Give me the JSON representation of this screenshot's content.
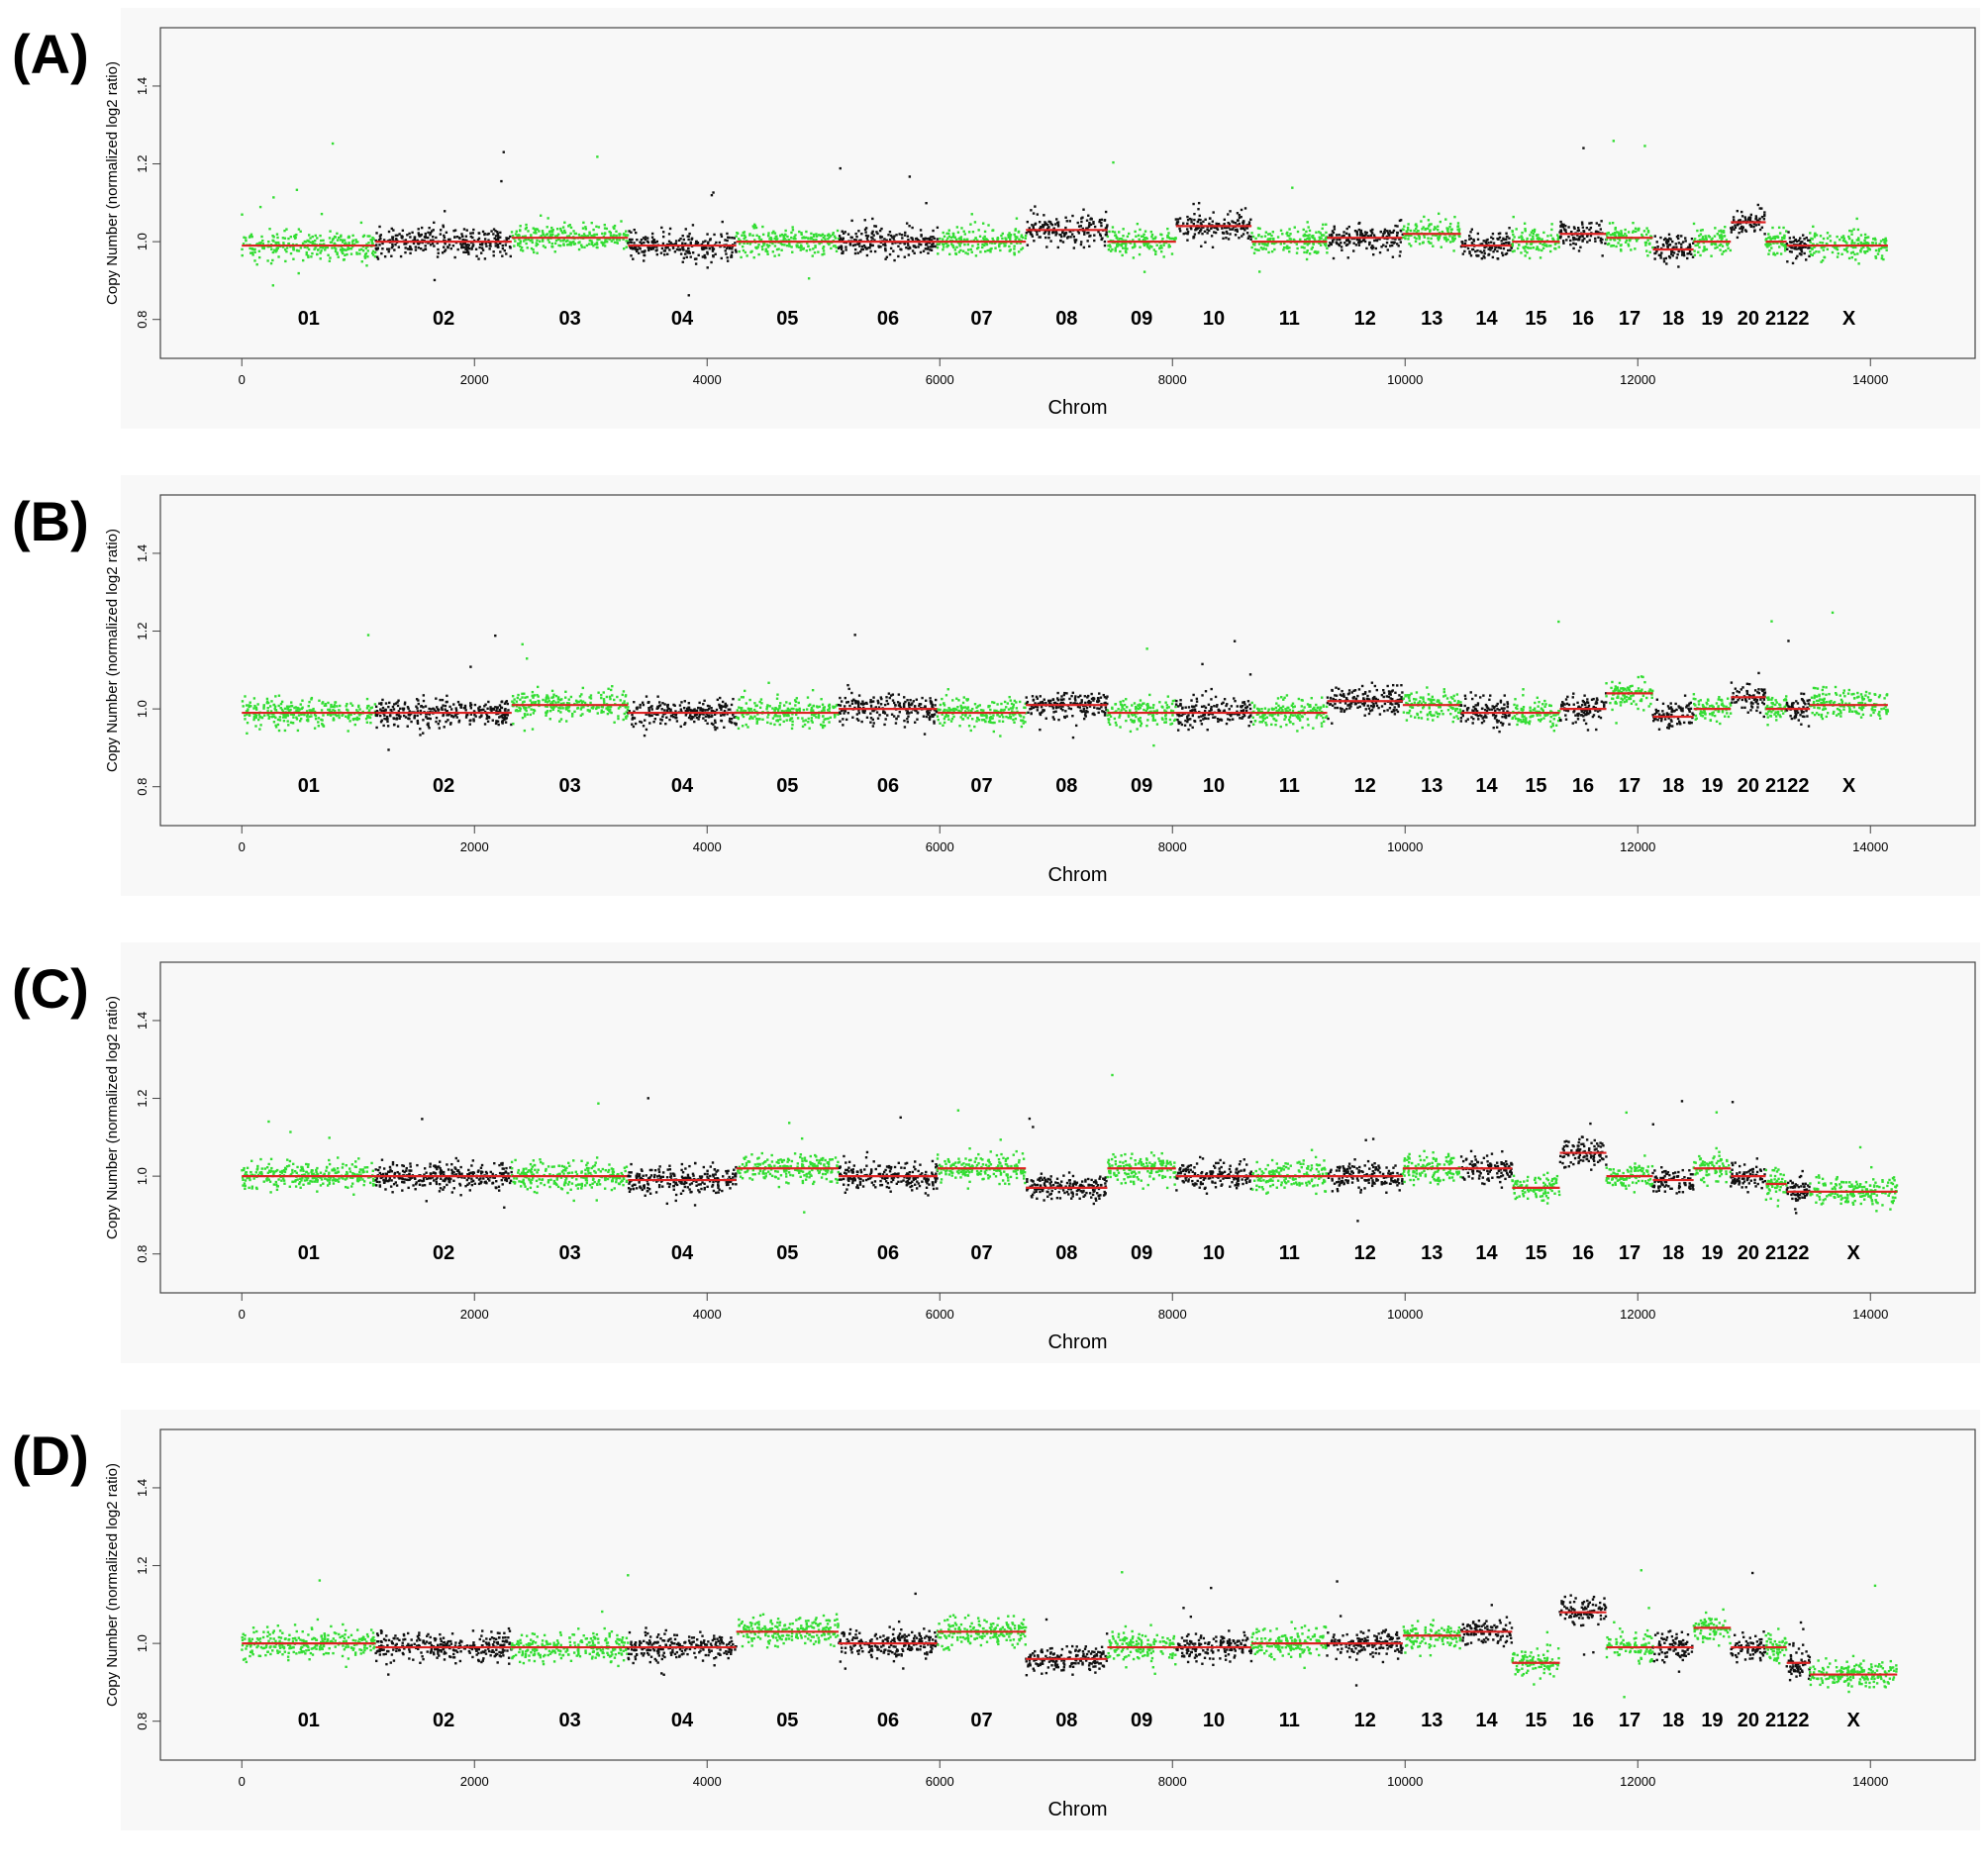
{
  "chart_data": [
    {
      "type": "scatter",
      "panel_label": "(A)",
      "xlabel": "Chrom",
      "ylabel": "Copy Number (normalized log2 ratio)",
      "xlim": [
        -700,
        14900
      ],
      "ylim": [
        0.7,
        1.55
      ],
      "xticks": [
        "0",
        "2000",
        "4000",
        "6000",
        "8000",
        "10000",
        "12000",
        "14000"
      ],
      "yticks": [
        "0.8",
        "1.0",
        "1.2",
        "1.4"
      ],
      "chromosomes": [
        {
          "label": "01",
          "start": 0,
          "end": 1150,
          "color": "green",
          "level": 0.99
        },
        {
          "label": "02",
          "start": 1150,
          "end": 2320,
          "color": "black",
          "level": 1.0
        },
        {
          "label": "03",
          "start": 2320,
          "end": 3320,
          "color": "green",
          "level": 1.01
        },
        {
          "label": "04",
          "start": 3320,
          "end": 4250,
          "color": "black",
          "level": 0.99
        },
        {
          "label": "05",
          "start": 4250,
          "end": 5130,
          "color": "green",
          "level": 1.0
        },
        {
          "label": "06",
          "start": 5130,
          "end": 5980,
          "color": "black",
          "level": 1.0
        },
        {
          "label": "07",
          "start": 5980,
          "end": 6740,
          "color": "green",
          "level": 1.0
        },
        {
          "label": "08",
          "start": 6740,
          "end": 7440,
          "color": "black",
          "level": 1.03
        },
        {
          "label": "09",
          "start": 7440,
          "end": 8030,
          "color": "green",
          "level": 1.0
        },
        {
          "label": "10",
          "start": 8030,
          "end": 8680,
          "color": "black",
          "level": 1.04
        },
        {
          "label": "11",
          "start": 8680,
          "end": 9330,
          "color": "green",
          "level": 1.0
        },
        {
          "label": "12",
          "start": 9330,
          "end": 9980,
          "color": "black",
          "level": 1.01
        },
        {
          "label": "13",
          "start": 9980,
          "end": 10480,
          "color": "green",
          "level": 1.02
        },
        {
          "label": "14",
          "start": 10480,
          "end": 10920,
          "color": "black",
          "level": 0.99
        },
        {
          "label": "15",
          "start": 10920,
          "end": 11330,
          "color": "green",
          "level": 1.0
        },
        {
          "label": "16",
          "start": 11330,
          "end": 11730,
          "color": "black",
          "level": 1.02
        },
        {
          "label": "17",
          "start": 11730,
          "end": 12130,
          "color": "green",
          "level": 1.01
        },
        {
          "label": "18",
          "start": 12130,
          "end": 12480,
          "color": "black",
          "level": 0.98
        },
        {
          "label": "19",
          "start": 12480,
          "end": 12800,
          "color": "green",
          "level": 1.0
        },
        {
          "label": "20",
          "start": 12800,
          "end": 13100,
          "color": "black",
          "level": 1.05
        },
        {
          "label": "21",
          "start": 13100,
          "end": 13280,
          "color": "green",
          "level": 1.0
        },
        {
          "label": "22",
          "start": 13280,
          "end": 13480,
          "color": "black",
          "level": 0.99
        },
        {
          "label": "X",
          "start": 13480,
          "end": 14150,
          "color": "green",
          "level": 0.99
        }
      ]
    },
    {
      "type": "scatter",
      "panel_label": "(B)",
      "xlabel": "Chrom",
      "ylabel": "Copy Number (normalized log2 ratio)",
      "xlim": [
        -700,
        14900
      ],
      "ylim": [
        0.7,
        1.55
      ],
      "xticks": [
        "0",
        "2000",
        "4000",
        "6000",
        "8000",
        "10000",
        "12000",
        "14000"
      ],
      "yticks": [
        "0.8",
        "1.0",
        "1.2",
        "1.4"
      ],
      "chromosomes": [
        {
          "label": "01",
          "start": 0,
          "end": 1150,
          "color": "green",
          "level": 0.99
        },
        {
          "label": "02",
          "start": 1150,
          "end": 2320,
          "color": "black",
          "level": 0.99
        },
        {
          "label": "03",
          "start": 2320,
          "end": 3320,
          "color": "green",
          "level": 1.01
        },
        {
          "label": "04",
          "start": 3320,
          "end": 4250,
          "color": "black",
          "level": 0.99
        },
        {
          "label": "05",
          "start": 4250,
          "end": 5130,
          "color": "green",
          "level": 0.99
        },
        {
          "label": "06",
          "start": 5130,
          "end": 5980,
          "color": "black",
          "level": 1.0
        },
        {
          "label": "07",
          "start": 5980,
          "end": 6740,
          "color": "green",
          "level": 0.99
        },
        {
          "label": "08",
          "start": 6740,
          "end": 7440,
          "color": "black",
          "level": 1.01
        },
        {
          "label": "09",
          "start": 7440,
          "end": 8030,
          "color": "green",
          "level": 0.99
        },
        {
          "label": "10",
          "start": 8030,
          "end": 8680,
          "color": "black",
          "level": 0.99
        },
        {
          "label": "11",
          "start": 8680,
          "end": 9330,
          "color": "green",
          "level": 0.99
        },
        {
          "label": "12",
          "start": 9330,
          "end": 9980,
          "color": "black",
          "level": 1.02
        },
        {
          "label": "13",
          "start": 9980,
          "end": 10480,
          "color": "green",
          "level": 1.01
        },
        {
          "label": "14",
          "start": 10480,
          "end": 10920,
          "color": "black",
          "level": 0.99
        },
        {
          "label": "15",
          "start": 10920,
          "end": 11330,
          "color": "green",
          "level": 0.99
        },
        {
          "label": "16",
          "start": 11330,
          "end": 11730,
          "color": "black",
          "level": 1.0
        },
        {
          "label": "17",
          "start": 11730,
          "end": 12130,
          "color": "green",
          "level": 1.04
        },
        {
          "label": "18",
          "start": 12130,
          "end": 12480,
          "color": "black",
          "level": 0.98
        },
        {
          "label": "19",
          "start": 12480,
          "end": 12800,
          "color": "green",
          "level": 1.0
        },
        {
          "label": "20",
          "start": 12800,
          "end": 13100,
          "color": "black",
          "level": 1.03
        },
        {
          "label": "21",
          "start": 13100,
          "end": 13280,
          "color": "green",
          "level": 1.0
        },
        {
          "label": "22",
          "start": 13280,
          "end": 13480,
          "color": "black",
          "level": 1.0
        },
        {
          "label": "X",
          "start": 13480,
          "end": 14150,
          "color": "green",
          "level": 1.01
        }
      ]
    },
    {
      "type": "scatter",
      "panel_label": "(C)",
      "xlabel": "Chrom",
      "ylabel": "Copy Number (normalized log2 ratio)",
      "xlim": [
        -700,
        14900
      ],
      "ylim": [
        0.7,
        1.55
      ],
      "xticks": [
        "0",
        "2000",
        "4000",
        "6000",
        "8000",
        "10000",
        "12000",
        "14000"
      ],
      "yticks": [
        "0.8",
        "1.0",
        "1.2",
        "1.4"
      ],
      "chromosomes": [
        {
          "label": "01",
          "start": 0,
          "end": 1150,
          "color": "green",
          "level": 1.0
        },
        {
          "label": "02",
          "start": 1150,
          "end": 2320,
          "color": "black",
          "level": 1.0
        },
        {
          "label": "03",
          "start": 2320,
          "end": 3320,
          "color": "green",
          "level": 1.0
        },
        {
          "label": "04",
          "start": 3320,
          "end": 4250,
          "color": "black",
          "level": 0.99
        },
        {
          "label": "05",
          "start": 4250,
          "end": 5130,
          "color": "green",
          "level": 1.02
        },
        {
          "label": "06",
          "start": 5130,
          "end": 5980,
          "color": "black",
          "level": 1.0
        },
        {
          "label": "07",
          "start": 5980,
          "end": 6740,
          "color": "green",
          "level": 1.02
        },
        {
          "label": "08",
          "start": 6740,
          "end": 7440,
          "color": "black",
          "level": 0.97
        },
        {
          "label": "09",
          "start": 7440,
          "end": 8030,
          "color": "green",
          "level": 1.02
        },
        {
          "label": "10",
          "start": 8030,
          "end": 8680,
          "color": "black",
          "level": 1.0
        },
        {
          "label": "11",
          "start": 8680,
          "end": 9330,
          "color": "green",
          "level": 1.0
        },
        {
          "label": "12",
          "start": 9330,
          "end": 9980,
          "color": "black",
          "level": 1.0
        },
        {
          "label": "13",
          "start": 9980,
          "end": 10480,
          "color": "green",
          "level": 1.02
        },
        {
          "label": "14",
          "start": 10480,
          "end": 10920,
          "color": "black",
          "level": 1.02
        },
        {
          "label": "15",
          "start": 10920,
          "end": 11330,
          "color": "green",
          "level": 0.97
        },
        {
          "label": "16",
          "start": 11330,
          "end": 11730,
          "color": "black",
          "level": 1.06
        },
        {
          "label": "17",
          "start": 11730,
          "end": 12130,
          "color": "green",
          "level": 1.0
        },
        {
          "label": "18",
          "start": 12130,
          "end": 12480,
          "color": "black",
          "level": 0.99
        },
        {
          "label": "19",
          "start": 12480,
          "end": 12800,
          "color": "green",
          "level": 1.02
        },
        {
          "label": "20",
          "start": 12800,
          "end": 13100,
          "color": "black",
          "level": 1.0
        },
        {
          "label": "21",
          "start": 13100,
          "end": 13280,
          "color": "green",
          "level": 0.98
        },
        {
          "label": "22",
          "start": 13280,
          "end": 13480,
          "color": "black",
          "level": 0.96
        },
        {
          "label": "X",
          "start": 13480,
          "end": 14230,
          "color": "green",
          "level": 0.96
        }
      ]
    },
    {
      "type": "scatter",
      "panel_label": "(D)",
      "xlabel": "Chrom",
      "ylabel": "Copy Number (normalized log2 ratio)",
      "xlim": [
        -700,
        14900
      ],
      "ylim": [
        0.7,
        1.55
      ],
      "xticks": [
        "0",
        "2000",
        "4000",
        "6000",
        "8000",
        "10000",
        "12000",
        "14000"
      ],
      "yticks": [
        "0.8",
        "1.0",
        "1.2",
        "1.4"
      ],
      "chromosomes": [
        {
          "label": "01",
          "start": 0,
          "end": 1150,
          "color": "green",
          "level": 1.0
        },
        {
          "label": "02",
          "start": 1150,
          "end": 2320,
          "color": "black",
          "level": 0.99
        },
        {
          "label": "03",
          "start": 2320,
          "end": 3320,
          "color": "green",
          "level": 0.99
        },
        {
          "label": "04",
          "start": 3320,
          "end": 4250,
          "color": "black",
          "level": 0.99
        },
        {
          "label": "05",
          "start": 4250,
          "end": 5130,
          "color": "green",
          "level": 1.03
        },
        {
          "label": "06",
          "start": 5130,
          "end": 5980,
          "color": "black",
          "level": 1.0
        },
        {
          "label": "07",
          "start": 5980,
          "end": 6740,
          "color": "green",
          "level": 1.03
        },
        {
          "label": "08",
          "start": 6740,
          "end": 7440,
          "color": "black",
          "level": 0.96
        },
        {
          "label": "09",
          "start": 7440,
          "end": 8030,
          "color": "green",
          "level": 0.99
        },
        {
          "label": "10",
          "start": 8030,
          "end": 8680,
          "color": "black",
          "level": 0.99
        },
        {
          "label": "11",
          "start": 8680,
          "end": 9330,
          "color": "green",
          "level": 1.0
        },
        {
          "label": "12",
          "start": 9330,
          "end": 9980,
          "color": "black",
          "level": 1.0
        },
        {
          "label": "13",
          "start": 9980,
          "end": 10480,
          "color": "green",
          "level": 1.02
        },
        {
          "label": "14",
          "start": 10480,
          "end": 10920,
          "color": "black",
          "level": 1.03
        },
        {
          "label": "15",
          "start": 10920,
          "end": 11330,
          "color": "green",
          "level": 0.95
        },
        {
          "label": "16",
          "start": 11330,
          "end": 11730,
          "color": "black",
          "level": 1.08
        },
        {
          "label": "17",
          "start": 11730,
          "end": 12130,
          "color": "green",
          "level": 0.99
        },
        {
          "label": "18",
          "start": 12130,
          "end": 12480,
          "color": "black",
          "level": 0.99
        },
        {
          "label": "19",
          "start": 12480,
          "end": 12800,
          "color": "green",
          "level": 1.04
        },
        {
          "label": "20",
          "start": 12800,
          "end": 13100,
          "color": "black",
          "level": 0.99
        },
        {
          "label": "21",
          "start": 13100,
          "end": 13280,
          "color": "green",
          "level": 0.99
        },
        {
          "label": "22",
          "start": 13280,
          "end": 13480,
          "color": "black",
          "level": 0.95
        },
        {
          "label": "X",
          "start": 13480,
          "end": 14230,
          "color": "green",
          "level": 0.92
        }
      ]
    }
  ],
  "colors": {
    "green_points": "#33dd33",
    "black_points": "#111111",
    "segment_line": "#dd2222",
    "plot_bg": "#f8f8f8"
  }
}
